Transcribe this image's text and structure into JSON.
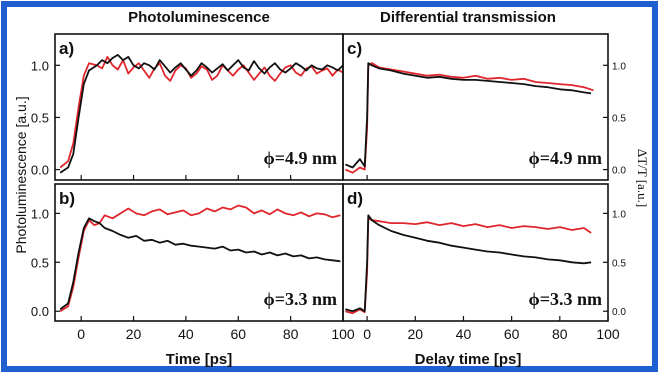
{
  "figure": {
    "left_title": "Photoluminescence",
    "right_title": "Differential transmission",
    "left_ylabel": "Photoluminescence [a.u.]",
    "right_ylabel": "ΔT/T [a.u.]",
    "left_xlabel": "Time [ps]",
    "right_xlabel": "Delay time [ps]",
    "colors": {
      "frame": "#1f5fd1",
      "red": "#e0262c",
      "black": "#111111"
    }
  },
  "chart_data": [
    {
      "panel": "a)",
      "type": "line",
      "annotation": "ϕ=4.9 nm",
      "xlim": [
        -10,
        100
      ],
      "ylim": [
        -0.1,
        1.3
      ],
      "xticks": [
        0,
        20,
        40,
        60,
        80,
        100
      ],
      "yticks": [
        "0.0",
        "0.5",
        "1.0"
      ],
      "series": [
        {
          "color": "red",
          "x": [
            -8,
            -5,
            -3,
            -1,
            1,
            3,
            6,
            8,
            10,
            12,
            14,
            16,
            18,
            20,
            22,
            24,
            26,
            28,
            30,
            32,
            34,
            36,
            38,
            40,
            42,
            44,
            46,
            48,
            50,
            52,
            54,
            56,
            58,
            60,
            62,
            64,
            66,
            68,
            70,
            72,
            74,
            76,
            78,
            80,
            82,
            84,
            86,
            88,
            90,
            92,
            94,
            96,
            98,
            100
          ],
          "y": [
            0.02,
            0.08,
            0.25,
            0.6,
            0.9,
            1.02,
            1.0,
            0.97,
            1.08,
            1.0,
            0.96,
            1.05,
            0.92,
            0.98,
            1.02,
            0.95,
            0.88,
            0.97,
            1.02,
            0.9,
            0.85,
            0.95,
            1.0,
            0.97,
            0.88,
            0.92,
            0.99,
            0.96,
            0.86,
            0.9,
            1.0,
            0.95,
            0.9,
            0.96,
            1.0,
            0.93,
            0.86,
            0.92,
            0.98,
            0.9,
            0.85,
            0.92,
            0.98,
            1.0,
            0.93,
            0.9,
            0.97,
            0.99,
            0.92,
            0.95,
            0.97,
            0.9,
            0.96,
            0.93
          ]
        },
        {
          "color": "black",
          "x": [
            -8,
            -5,
            -3,
            -1,
            1,
            3,
            6,
            8,
            10,
            12,
            14,
            16,
            18,
            20,
            22,
            24,
            26,
            28,
            30,
            32,
            34,
            36,
            38,
            40,
            42,
            44,
            46,
            48,
            50,
            52,
            54,
            56,
            58,
            60,
            62,
            64,
            66,
            68,
            70,
            72,
            74,
            76,
            78,
            80,
            82,
            84,
            86,
            88,
            90,
            92,
            94,
            96,
            98,
            100
          ],
          "y": [
            -0.03,
            0.02,
            0.15,
            0.5,
            0.82,
            0.95,
            1.0,
            1.05,
            1.02,
            1.07,
            1.1,
            1.05,
            1.08,
            1.0,
            0.97,
            1.02,
            1.0,
            0.96,
            1.05,
            0.99,
            0.93,
            0.98,
            1.02,
            0.96,
            0.9,
            0.95,
            1.02,
            0.98,
            0.93,
            0.97,
            1.01,
            0.95,
            1.0,
            1.05,
            0.98,
            0.95,
            1.04,
            0.97,
            0.92,
            0.98,
            1.02,
            0.96,
            0.93,
            0.97,
            1.02,
            0.99,
            0.95,
            1.0,
            0.97,
            0.96,
            1.0,
            0.98,
            0.95,
            1.0
          ]
        }
      ]
    },
    {
      "panel": "b)",
      "type": "line",
      "annotation": "ϕ=3.3 nm",
      "xlim": [
        -10,
        100
      ],
      "ylim": [
        -0.1,
        1.3
      ],
      "xticks": [
        0,
        20,
        40,
        60,
        80,
        100
      ],
      "yticks": [
        "0.0",
        "0.5",
        "1.0"
      ],
      "series": [
        {
          "color": "red",
          "x": [
            -8,
            -5,
            -3,
            -1,
            1,
            3,
            5,
            7,
            9,
            12,
            15,
            18,
            21,
            24,
            27,
            30,
            33,
            36,
            39,
            42,
            45,
            48,
            51,
            54,
            57,
            60,
            63,
            66,
            69,
            72,
            75,
            78,
            81,
            84,
            87,
            90,
            93,
            96,
            99
          ],
          "y": [
            0.0,
            0.05,
            0.25,
            0.55,
            0.82,
            0.93,
            0.88,
            0.9,
            0.98,
            0.95,
            1.0,
            1.05,
            1.0,
            0.98,
            1.02,
            1.04,
            0.99,
            1.01,
            1.03,
            0.98,
            1.0,
            1.05,
            1.02,
            1.06,
            1.04,
            1.08,
            1.06,
            1.0,
            1.03,
            0.99,
            1.04,
            1.0,
            0.98,
            1.01,
            0.97,
            1.0,
            0.99,
            0.96,
            0.98
          ]
        },
        {
          "color": "black",
          "x": [
            -8,
            -5,
            -3,
            -1,
            1,
            3,
            5,
            7,
            9,
            12,
            15,
            18,
            21,
            24,
            27,
            30,
            33,
            36,
            39,
            42,
            45,
            48,
            51,
            54,
            57,
            60,
            63,
            66,
            69,
            72,
            75,
            78,
            81,
            84,
            87,
            90,
            93,
            96,
            99
          ],
          "y": [
            0.02,
            0.08,
            0.3,
            0.6,
            0.85,
            0.95,
            0.92,
            0.9,
            0.85,
            0.82,
            0.78,
            0.75,
            0.77,
            0.72,
            0.73,
            0.7,
            0.72,
            0.68,
            0.69,
            0.67,
            0.66,
            0.65,
            0.64,
            0.66,
            0.62,
            0.63,
            0.6,
            0.61,
            0.58,
            0.6,
            0.57,
            0.59,
            0.56,
            0.57,
            0.54,
            0.55,
            0.53,
            0.52,
            0.51
          ]
        }
      ]
    },
    {
      "panel": "c)",
      "type": "line",
      "annotation": "ϕ=4.9 nm",
      "xlim": [
        -10,
        100
      ],
      "ylim": [
        -0.1,
        1.3
      ],
      "xticks": [
        0
      ],
      "yticks": [
        "0.0",
        "0.5",
        "1.0"
      ],
      "series": [
        {
          "color": "red",
          "x": [
            -9,
            -6,
            -3,
            -1,
            0,
            0.5,
            2,
            5,
            10,
            15,
            20,
            25,
            30,
            35,
            40,
            45,
            50,
            55,
            60,
            65,
            70,
            75,
            80,
            85,
            90,
            94
          ],
          "y": [
            0.0,
            -0.03,
            0.02,
            0.0,
            0.4,
            1.0,
            1.02,
            0.98,
            0.96,
            0.94,
            0.92,
            0.9,
            0.91,
            0.89,
            0.88,
            0.9,
            0.87,
            0.88,
            0.86,
            0.87,
            0.84,
            0.83,
            0.82,
            0.81,
            0.79,
            0.76
          ]
        },
        {
          "color": "black",
          "x": [
            -9,
            -6,
            -3,
            -1,
            0,
            0.5,
            2,
            5,
            10,
            15,
            20,
            25,
            30,
            35,
            40,
            45,
            50,
            55,
            60,
            65,
            70,
            75,
            80,
            85,
            90,
            93
          ],
          "y": [
            0.05,
            0.02,
            0.1,
            0.03,
            0.5,
            1.02,
            1.0,
            0.97,
            0.95,
            0.92,
            0.9,
            0.88,
            0.89,
            0.87,
            0.86,
            0.86,
            0.85,
            0.84,
            0.83,
            0.82,
            0.8,
            0.79,
            0.77,
            0.76,
            0.74,
            0.73
          ]
        }
      ]
    },
    {
      "panel": "d)",
      "type": "line",
      "annotation": "ϕ=3.3 nm",
      "xlim": [
        -10,
        100
      ],
      "ylim": [
        -0.1,
        1.3
      ],
      "xticks": [
        0,
        20,
        40,
        60,
        80,
        100
      ],
      "yticks": [
        "0.0",
        "0.5",
        "1.0"
      ],
      "series": [
        {
          "color": "red",
          "x": [
            -9,
            -6,
            -3,
            -1,
            0,
            0.5,
            2,
            5,
            10,
            15,
            20,
            25,
            30,
            35,
            40,
            45,
            50,
            55,
            60,
            65,
            70,
            75,
            80,
            85,
            90,
            93
          ],
          "y": [
            0.0,
            -0.02,
            0.02,
            -0.01,
            0.4,
            0.95,
            0.93,
            0.92,
            0.9,
            0.9,
            0.89,
            0.91,
            0.88,
            0.9,
            0.87,
            0.89,
            0.86,
            0.88,
            0.85,
            0.87,
            0.86,
            0.84,
            0.86,
            0.83,
            0.85,
            0.8
          ]
        },
        {
          "color": "black",
          "x": [
            -9,
            -6,
            -3,
            -1,
            0,
            0.5,
            2,
            5,
            10,
            15,
            20,
            25,
            30,
            35,
            40,
            45,
            50,
            55,
            60,
            65,
            70,
            75,
            80,
            85,
            90,
            93
          ],
          "y": [
            0.02,
            0.0,
            0.03,
            0.0,
            0.5,
            0.98,
            0.93,
            0.88,
            0.82,
            0.78,
            0.75,
            0.72,
            0.7,
            0.67,
            0.65,
            0.63,
            0.61,
            0.6,
            0.58,
            0.56,
            0.55,
            0.53,
            0.52,
            0.5,
            0.49,
            0.5
          ]
        }
      ]
    }
  ]
}
